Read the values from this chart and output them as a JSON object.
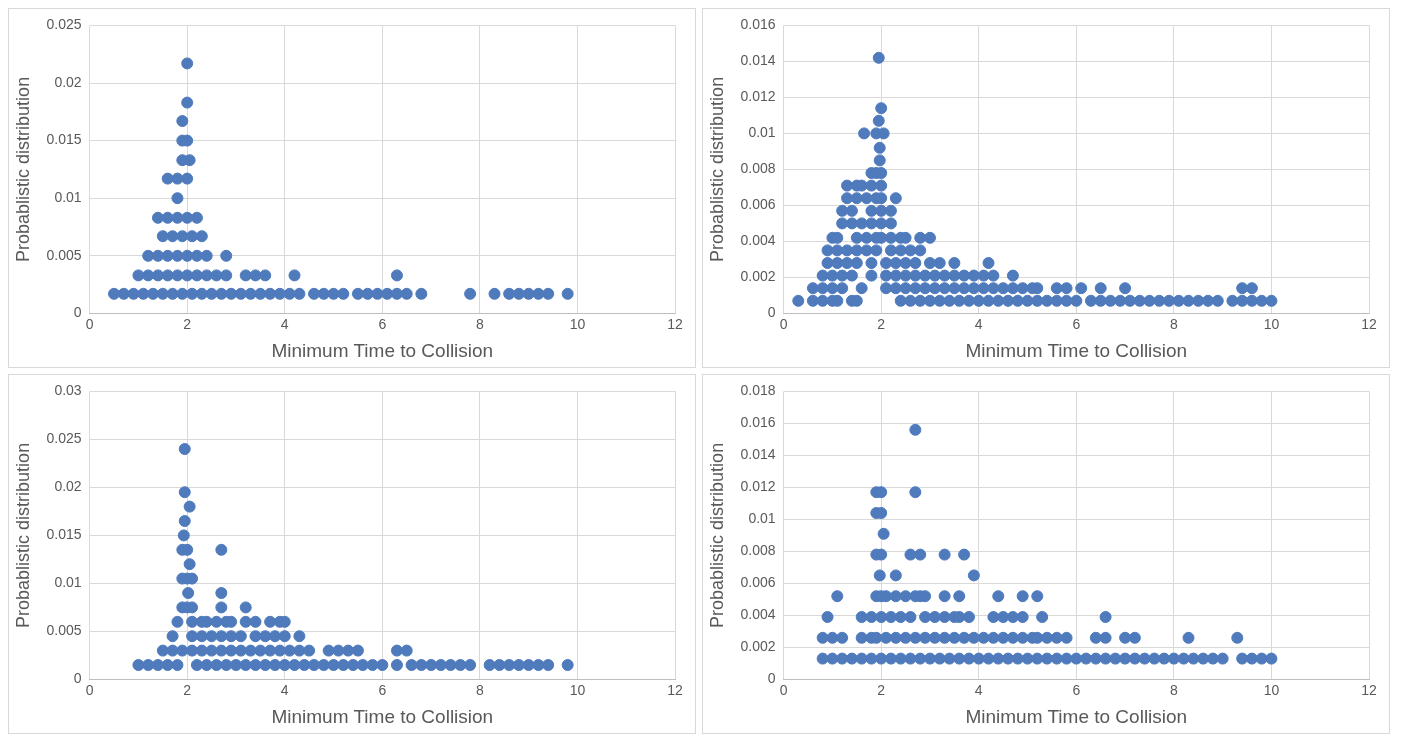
{
  "chart_data": [
    {
      "type": "scatter",
      "xlabel": "Minimum Time to Collision",
      "ylabel": "Probablistic distribution",
      "xlim": [
        0,
        12
      ],
      "xticks": [
        0,
        2,
        4,
        6,
        8,
        10,
        12
      ],
      "ylim": [
        0,
        0.025
      ],
      "yticks": [
        0,
        0.005,
        0.01,
        0.015,
        0.02,
        0.025
      ],
      "grid": true,
      "legend": false,
      "marker": "circle",
      "series": [
        {
          "color": "#4f7bbd",
          "x": [
            0.5,
            0.7,
            0.9,
            1.1,
            1.3,
            1.5,
            1.7,
            1.9,
            2.1,
            2.3,
            2.5,
            2.7,
            2.9,
            3.1,
            3.3,
            3.5,
            3.7,
            3.9,
            4.1,
            4.3,
            4.6,
            4.8,
            5,
            5.2,
            5.5,
            5.7,
            5.9,
            6.1,
            6.3,
            6.5,
            6.8,
            7.8,
            8.3,
            8.6,
            8.8,
            9,
            9.2,
            9.4,
            9.8
          ],
          "values": [
            0.0017,
            0.0017,
            0.0017,
            0.0017,
            0.0017,
            0.0017,
            0.0017,
            0.0017,
            0.0017,
            0.0017,
            0.0017,
            0.0017,
            0.0017,
            0.0017,
            0.0017,
            0.0017,
            0.0017,
            0.0017,
            0.0017,
            0.0017,
            0.0017,
            0.0017,
            0.0017,
            0.0017,
            0.0017,
            0.0017,
            0.0017,
            0.0017,
            0.0017,
            0.0017,
            0.0017,
            0.0017,
            0.0017,
            0.0017,
            0.0017,
            0.0017,
            0.0017,
            0.0017,
            0.0017
          ]
        },
        {
          "color": "#4f7bbd",
          "x": [
            1,
            1.2,
            1.4,
            1.6,
            1.8,
            2,
            2.2,
            2.4,
            2.6,
            2.8,
            3.2,
            3.4,
            3.6,
            4.2,
            6.3
          ],
          "values": [
            0.0033,
            0.0033,
            0.0033,
            0.0033,
            0.0033,
            0.0033,
            0.0033,
            0.0033,
            0.0033,
            0.0033,
            0.0033,
            0.0033,
            0.0033,
            0.0033,
            0.0033
          ]
        },
        {
          "color": "#4f7bbd",
          "x": [
            1.2,
            1.4,
            1.6,
            1.8,
            2,
            2.2,
            2.4,
            2.8
          ],
          "values": [
            0.005,
            0.005,
            0.005,
            0.005,
            0.005,
            0.005,
            0.005,
            0.005
          ]
        },
        {
          "color": "#4f7bbd",
          "x": [
            1.5,
            1.7,
            1.9,
            2.1,
            2.3,
            1.4,
            1.6,
            1.8,
            2,
            2.2
          ],
          "values": [
            0.0067,
            0.0067,
            0.0067,
            0.0067,
            0.0067,
            0.0083,
            0.0083,
            0.0083,
            0.0083,
            0.0083
          ]
        },
        {
          "color": "#4f7bbd",
          "x": [
            1.8,
            1.6,
            1.8,
            2,
            1.9,
            2.05,
            1.9,
            2,
            1.9,
            2,
            2
          ],
          "values": [
            0.01,
            0.0117,
            0.0117,
            0.0117,
            0.0133,
            0.0133,
            0.015,
            0.015,
            0.0167,
            0.0183,
            0.0217
          ]
        }
      ]
    },
    {
      "type": "scatter",
      "xlabel": "Minimum Time to Collision",
      "ylabel": "Probablistic distribution",
      "xlim": [
        0,
        12
      ],
      "xticks": [
        0,
        2,
        4,
        6,
        8,
        10,
        12
      ],
      "ylim": [
        0,
        0.016
      ],
      "yticks": [
        0,
        0.002,
        0.004,
        0.006,
        0.008,
        0.01,
        0.012,
        0.014,
        0.016
      ],
      "grid": true,
      "legend": false,
      "marker": "circle",
      "series": [
        {
          "color": "#4f7bbd",
          "x": [
            0.3,
            0.6,
            0.8,
            1,
            1.1,
            1.4,
            1.5,
            2.4,
            2.6,
            2.8,
            3,
            3.2,
            3.4,
            3.6,
            3.8,
            4,
            4.2,
            4.4,
            4.6,
            4.8,
            5,
            5.2,
            5.4,
            5.6,
            5.8,
            6,
            6.3,
            6.5,
            6.7,
            6.9,
            7.1,
            7.3,
            7.5,
            7.7,
            7.9,
            8.1,
            8.3,
            8.5,
            8.7,
            8.9,
            9.2,
            9.4,
            9.6,
            9.8,
            10
          ],
          "values": [
            0.0007,
            0.0007,
            0.0007,
            0.0007,
            0.0007,
            0.0007,
            0.0007,
            0.0007,
            0.0007,
            0.0007,
            0.0007,
            0.0007,
            0.0007,
            0.0007,
            0.0007,
            0.0007,
            0.0007,
            0.0007,
            0.0007,
            0.0007,
            0.0007,
            0.0007,
            0.0007,
            0.0007,
            0.0007,
            0.0007,
            0.0007,
            0.0007,
            0.0007,
            0.0007,
            0.0007,
            0.0007,
            0.0007,
            0.0007,
            0.0007,
            0.0007,
            0.0007,
            0.0007,
            0.0007,
            0.0007,
            0.0007,
            0.0007,
            0.0007,
            0.0007,
            0.0007
          ]
        },
        {
          "color": "#4f7bbd",
          "x": [
            0.6,
            0.8,
            1,
            1.2,
            1.6,
            2.1,
            2.3,
            2.5,
            2.7,
            2.9,
            3.1,
            3.3,
            3.5,
            3.7,
            3.9,
            4.1,
            4.3,
            4.5,
            4.7,
            4.9,
            5.1,
            5.2,
            5.6,
            5.8,
            6.1,
            6.5,
            7,
            9.4,
            9.6
          ],
          "values": [
            0.0014,
            0.0014,
            0.0014,
            0.0014,
            0.0014,
            0.0014,
            0.0014,
            0.0014,
            0.0014,
            0.0014,
            0.0014,
            0.0014,
            0.0014,
            0.0014,
            0.0014,
            0.0014,
            0.0014,
            0.0014,
            0.0014,
            0.0014,
            0.0014,
            0.0014,
            0.0014,
            0.0014,
            0.0014,
            0.0014,
            0.0014,
            0.0014,
            0.0014
          ]
        },
        {
          "color": "#4f7bbd",
          "x": [
            0.8,
            1,
            1.2,
            1.4,
            1.8,
            2.1,
            2.3,
            2.5,
            2.7,
            2.9,
            3.1,
            3.3,
            3.5,
            3.7,
            3.9,
            4.1,
            4.3,
            4.7
          ],
          "values": [
            0.0021,
            0.0021,
            0.0021,
            0.0021,
            0.0021,
            0.0021,
            0.0021,
            0.0021,
            0.0021,
            0.0021,
            0.0021,
            0.0021,
            0.0021,
            0.0021,
            0.0021,
            0.0021,
            0.0021,
            0.0021
          ]
        },
        {
          "color": "#4f7bbd",
          "x": [
            0.9,
            1.1,
            1.3,
            1.5,
            1.8,
            2.1,
            2.3,
            2.5,
            2.7,
            3,
            3.2,
            3.5,
            4.2
          ],
          "values": [
            0.0028,
            0.0028,
            0.0028,
            0.0028,
            0.0028,
            0.0028,
            0.0028,
            0.0028,
            0.0028,
            0.0028,
            0.0028,
            0.0028,
            0.0028
          ]
        },
        {
          "color": "#4f7bbd",
          "x": [
            0.9,
            1.1,
            1.3,
            1.5,
            1.7,
            1.9,
            2.2,
            2.4,
            2.6,
            2.8
          ],
          "values": [
            0.0035,
            0.0035,
            0.0035,
            0.0035,
            0.0035,
            0.0035,
            0.0035,
            0.0035,
            0.0035,
            0.0035
          ]
        },
        {
          "color": "#4f7bbd",
          "x": [
            1,
            1.1,
            1.5,
            1.7,
            1.9,
            2,
            2.2,
            2.4,
            2.5,
            2.8,
            3
          ],
          "values": [
            0.0042,
            0.0042,
            0.0042,
            0.0042,
            0.0042,
            0.0042,
            0.0042,
            0.0042,
            0.0042,
            0.0042,
            0.0042
          ]
        },
        {
          "color": "#4f7bbd",
          "x": [
            1.2,
            1.4,
            1.6,
            1.8,
            2,
            2.2,
            1.2,
            1.4,
            1.8,
            2,
            2.2
          ],
          "values": [
            0.005,
            0.005,
            0.005,
            0.005,
            0.005,
            0.005,
            0.0057,
            0.0057,
            0.0057,
            0.0057,
            0.0057
          ]
        },
        {
          "color": "#4f7bbd",
          "x": [
            1.3,
            1.5,
            1.7,
            1.9,
            2,
            2.3,
            1.3,
            1.5,
            1.6,
            1.8,
            2,
            1.8,
            1.9,
            2
          ],
          "values": [
            0.0064,
            0.0064,
            0.0064,
            0.0064,
            0.0064,
            0.0064,
            0.0071,
            0.0071,
            0.0071,
            0.0071,
            0.0071,
            0.0078,
            0.0078,
            0.0078
          ]
        },
        {
          "color": "#4f7bbd",
          "x": [
            1.97,
            1.97,
            1.65,
            1.9,
            2.05,
            1.95,
            2,
            1.95
          ],
          "values": [
            0.0085,
            0.0092,
            0.01,
            0.01,
            0.01,
            0.0107,
            0.0114,
            0.0142
          ]
        }
      ]
    },
    {
      "type": "scatter",
      "xlabel": "Minimum Time to Collision",
      "ylabel": "Probablistic distribution",
      "xlim": [
        0,
        12
      ],
      "xticks": [
        0,
        2,
        4,
        6,
        8,
        10,
        12
      ],
      "ylim": [
        0,
        0.03
      ],
      "yticks": [
        0,
        0.005,
        0.01,
        0.015,
        0.02,
        0.025,
        0.03
      ],
      "grid": true,
      "legend": false,
      "marker": "circle",
      "series": [
        {
          "color": "#4f7bbd",
          "x": [
            1,
            1.2,
            1.4,
            1.6,
            1.8,
            2.2,
            2.4,
            2.6,
            2.8,
            3,
            3.2,
            3.4,
            3.6,
            3.8,
            4,
            4.2,
            4.4,
            4.6,
            4.8,
            5,
            5.2,
            5.4,
            5.6,
            5.8,
            6,
            6.3,
            6.6,
            6.8,
            7,
            7.2,
            7.4,
            7.6,
            7.8,
            8.2,
            8.4,
            8.6,
            8.8,
            9,
            9.2,
            9.4,
            9.8
          ],
          "values": [
            0.0015,
            0.0015,
            0.0015,
            0.0015,
            0.0015,
            0.0015,
            0.0015,
            0.0015,
            0.0015,
            0.0015,
            0.0015,
            0.0015,
            0.0015,
            0.0015,
            0.0015,
            0.0015,
            0.0015,
            0.0015,
            0.0015,
            0.0015,
            0.0015,
            0.0015,
            0.0015,
            0.0015,
            0.0015,
            0.0015,
            0.0015,
            0.0015,
            0.0015,
            0.0015,
            0.0015,
            0.0015,
            0.0015,
            0.0015,
            0.0015,
            0.0015,
            0.0015,
            0.0015,
            0.0015,
            0.0015,
            0.0015
          ]
        },
        {
          "color": "#4f7bbd",
          "x": [
            1.5,
            1.7,
            1.9,
            2.1,
            2.3,
            2.5,
            2.7,
            2.9,
            3.1,
            3.3,
            3.5,
            3.7,
            3.9,
            4.1,
            4.3,
            4.5,
            4.9,
            5.1,
            5.3,
            5.5,
            6.3,
            6.5
          ],
          "values": [
            0.003,
            0.003,
            0.003,
            0.003,
            0.003,
            0.003,
            0.003,
            0.003,
            0.003,
            0.003,
            0.003,
            0.003,
            0.003,
            0.003,
            0.003,
            0.003,
            0.003,
            0.003,
            0.003,
            0.003,
            0.003,
            0.003
          ]
        },
        {
          "color": "#4f7bbd",
          "x": [
            1.7,
            2.1,
            2.3,
            2.5,
            2.7,
            2.9,
            3.1,
            3.4,
            3.6,
            3.8,
            4,
            4.3
          ],
          "values": [
            0.0045,
            0.0045,
            0.0045,
            0.0045,
            0.0045,
            0.0045,
            0.0045,
            0.0045,
            0.0045,
            0.0045,
            0.0045,
            0.0045
          ]
        },
        {
          "color": "#4f7bbd",
          "x": [
            1.8,
            2.1,
            2.3,
            2.4,
            2.6,
            2.8,
            2.9,
            3.2,
            3.4,
            3.7,
            3.9,
            4
          ],
          "values": [
            0.006,
            0.006,
            0.006,
            0.006,
            0.006,
            0.006,
            0.006,
            0.006,
            0.006,
            0.006,
            0.006,
            0.006
          ]
        },
        {
          "color": "#4f7bbd",
          "x": [
            1.9,
            2,
            2.1,
            2.7,
            3.2,
            2.02,
            2.7,
            1.9,
            2,
            2.1,
            2.05,
            1.9,
            2,
            2.7,
            1.93,
            1.95,
            2.05,
            1.95,
            1.95
          ],
          "values": [
            0.0075,
            0.0075,
            0.0075,
            0.0075,
            0.0075,
            0.009,
            0.009,
            0.0105,
            0.0105,
            0.0105,
            0.012,
            0.0135,
            0.0135,
            0.0135,
            0.015,
            0.0165,
            0.018,
            0.0195,
            0.024
          ]
        }
      ]
    },
    {
      "type": "scatter",
      "xlabel": "Minimum Time to Collision",
      "ylabel": "Probablistic distribution",
      "xlim": [
        0,
        12
      ],
      "xticks": [
        0,
        2,
        4,
        6,
        8,
        10,
        12
      ],
      "ylim": [
        0,
        0.018
      ],
      "yticks": [
        0,
        0.002,
        0.004,
        0.006,
        0.008,
        0.01,
        0.012,
        0.014,
        0.016,
        0.018
      ],
      "grid": true,
      "legend": false,
      "marker": "circle",
      "series": [
        {
          "color": "#4f7bbd",
          "x": [
            0.8,
            1,
            1.2,
            1.4,
            1.6,
            1.8,
            2,
            2.2,
            2.4,
            2.6,
            2.8,
            3,
            3.2,
            3.4,
            3.6,
            3.8,
            4,
            4.2,
            4.4,
            4.6,
            4.8,
            5,
            5.2,
            5.4,
            5.6,
            5.8,
            6,
            6.2,
            6.4,
            6.6,
            6.8,
            7,
            7.2,
            7.4,
            7.6,
            7.8,
            8,
            8.2,
            8.4,
            8.6,
            8.8,
            9,
            9.4,
            9.6,
            9.8,
            10
          ],
          "values": [
            0.0013,
            0.0013,
            0.0013,
            0.0013,
            0.0013,
            0.0013,
            0.0013,
            0.0013,
            0.0013,
            0.0013,
            0.0013,
            0.0013,
            0.0013,
            0.0013,
            0.0013,
            0.0013,
            0.0013,
            0.0013,
            0.0013,
            0.0013,
            0.0013,
            0.0013,
            0.0013,
            0.0013,
            0.0013,
            0.0013,
            0.0013,
            0.0013,
            0.0013,
            0.0013,
            0.0013,
            0.0013,
            0.0013,
            0.0013,
            0.0013,
            0.0013,
            0.0013,
            0.0013,
            0.0013,
            0.0013,
            0.0013,
            0.0013,
            0.0013,
            0.0013,
            0.0013,
            0.0013
          ]
        },
        {
          "color": "#4f7bbd",
          "x": [
            0.8,
            1,
            1.2,
            1.6,
            1.8,
            1.9,
            2.1,
            2.3,
            2.5,
            2.7,
            2.9,
            3.1,
            3.3,
            3.5,
            3.7,
            3.9,
            4.1,
            4.3,
            4.5,
            4.7,
            4.9,
            5.1,
            5.2,
            5.4,
            5.6,
            5.8,
            6.4,
            6.6,
            7,
            7.2,
            8.3,
            9.3
          ],
          "values": [
            0.0026,
            0.0026,
            0.0026,
            0.0026,
            0.0026,
            0.0026,
            0.0026,
            0.0026,
            0.0026,
            0.0026,
            0.0026,
            0.0026,
            0.0026,
            0.0026,
            0.0026,
            0.0026,
            0.0026,
            0.0026,
            0.0026,
            0.0026,
            0.0026,
            0.0026,
            0.0026,
            0.0026,
            0.0026,
            0.0026,
            0.0026,
            0.0026,
            0.0026,
            0.0026,
            0.0026,
            0.0026
          ]
        },
        {
          "color": "#4f7bbd",
          "x": [
            0.9,
            1.6,
            1.8,
            2,
            2.2,
            2.4,
            2.6,
            2.9,
            3.1,
            3.3,
            3.5,
            3.6,
            3.8,
            4.3,
            4.5,
            4.7,
            4.9,
            5.3,
            6.6
          ],
          "values": [
            0.0039,
            0.0039,
            0.0039,
            0.0039,
            0.0039,
            0.0039,
            0.0039,
            0.0039,
            0.0039,
            0.0039,
            0.0039,
            0.0039,
            0.0039,
            0.0039,
            0.0039,
            0.0039,
            0.0039,
            0.0039,
            0.0039
          ]
        },
        {
          "color": "#4f7bbd",
          "x": [
            1.1,
            1.9,
            2,
            2.1,
            2.3,
            2.5,
            2.7,
            2.8,
            2.9,
            3.3,
            3.6,
            4.4,
            4.9,
            5.2
          ],
          "values": [
            0.0052,
            0.0052,
            0.0052,
            0.0052,
            0.0052,
            0.0052,
            0.0052,
            0.0052,
            0.0052,
            0.0052,
            0.0052,
            0.0052,
            0.0052,
            0.0052
          ]
        },
        {
          "color": "#4f7bbd",
          "x": [
            1.97,
            2.3,
            3.9,
            1.9,
            2,
            2.6,
            2.8,
            3.3,
            3.7,
            2.05,
            1.9,
            2,
            1.9,
            2,
            2.7,
            2.7
          ],
          "values": [
            0.0065,
            0.0065,
            0.0065,
            0.0078,
            0.0078,
            0.0078,
            0.0078,
            0.0078,
            0.0078,
            0.0091,
            0.0104,
            0.0104,
            0.0117,
            0.0117,
            0.0117,
            0.0156
          ]
        }
      ]
    }
  ]
}
